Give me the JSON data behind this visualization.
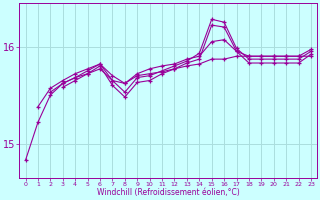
{
  "x": [
    0,
    1,
    2,
    3,
    4,
    5,
    6,
    7,
    8,
    9,
    10,
    11,
    12,
    13,
    14,
    15,
    16,
    17,
    18,
    19,
    20,
    21,
    22,
    23
  ],
  "line1": [
    14.83,
    15.22,
    15.5,
    15.62,
    15.68,
    15.72,
    15.77,
    15.65,
    15.62,
    15.7,
    15.72,
    15.74,
    15.77,
    15.8,
    15.82,
    15.87,
    15.87,
    15.9,
    15.9,
    15.9,
    15.9,
    15.9,
    15.9,
    15.9
  ],
  "line2": [
    null,
    15.38,
    15.57,
    15.65,
    15.72,
    15.77,
    15.82,
    15.7,
    15.62,
    15.72,
    15.77,
    15.8,
    15.82,
    15.87,
    15.9,
    16.05,
    16.07,
    15.95,
    15.9,
    15.9,
    15.9,
    15.9,
    15.9,
    15.97
  ],
  "line3": [
    null,
    null,
    15.53,
    15.62,
    15.68,
    15.75,
    15.82,
    15.65,
    15.53,
    15.68,
    15.7,
    15.75,
    15.8,
    15.85,
    15.93,
    16.28,
    16.25,
    15.98,
    15.87,
    15.87,
    15.87,
    15.87,
    15.87,
    15.95
  ],
  "line4": [
    null,
    null,
    null,
    15.58,
    15.65,
    15.72,
    15.8,
    15.6,
    15.48,
    15.63,
    15.65,
    15.72,
    15.77,
    15.83,
    15.87,
    16.22,
    16.2,
    15.95,
    15.83,
    15.83,
    15.83,
    15.83,
    15.83,
    15.92
  ],
  "line_color": "#990099",
  "bg_color": "#ccffff",
  "grid_color": "#aadddd",
  "xlabel": "Windchill (Refroidissement éolien,°C)",
  "yticks": [
    15,
    16
  ],
  "ylim": [
    14.65,
    16.45
  ],
  "xlim": [
    -0.5,
    23.5
  ],
  "xtick_labels": [
    "0",
    "1",
    "2",
    "3",
    "4",
    "5",
    "6",
    "7",
    "8",
    "9",
    "10",
    "11",
    "12",
    "13",
    "14",
    "15",
    "16",
    "17",
    "18",
    "19",
    "20",
    "21",
    "22",
    "23"
  ]
}
